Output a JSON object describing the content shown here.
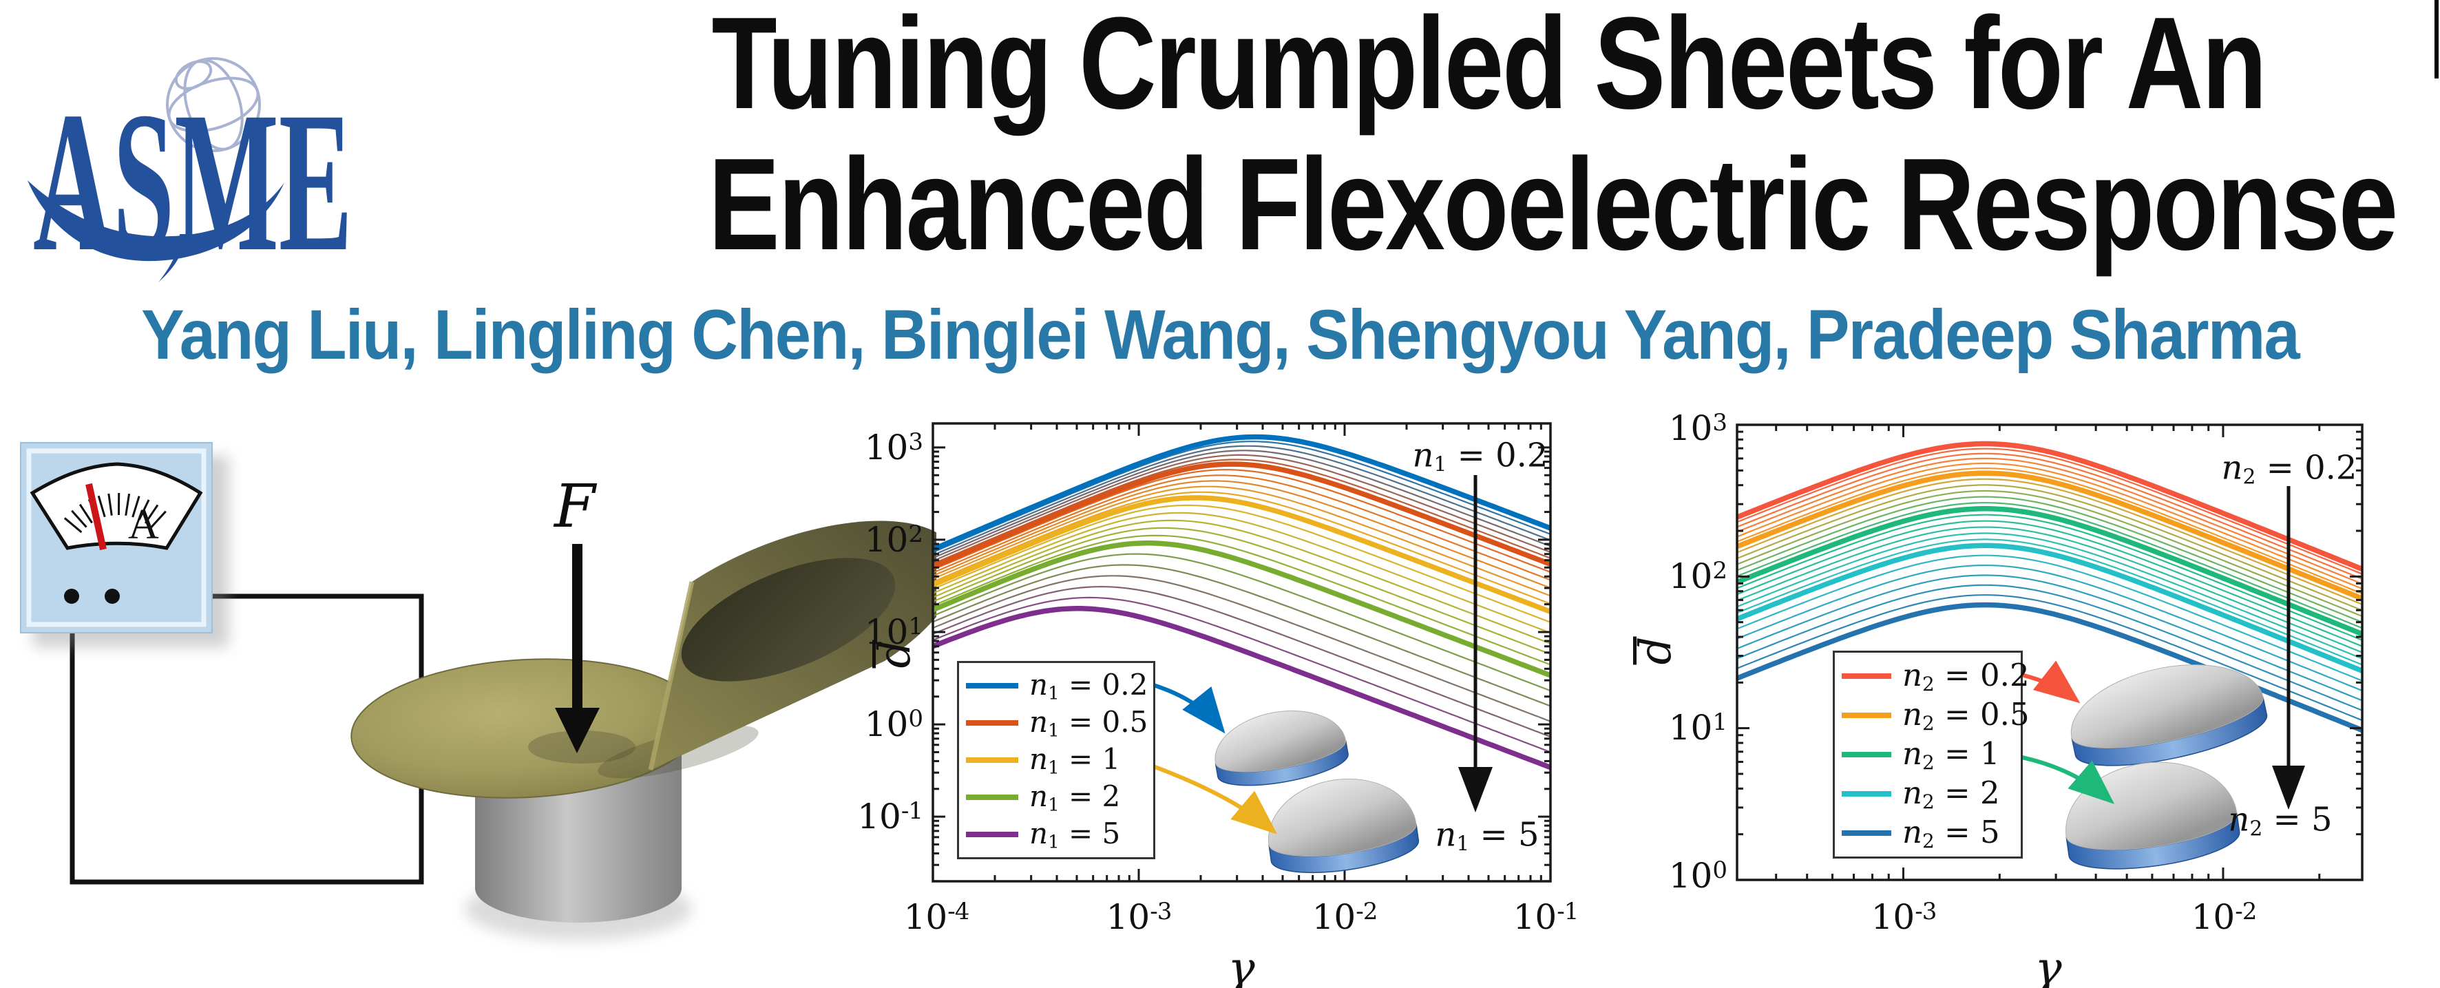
{
  "page": {
    "background": "#ffffff",
    "right_edge_mark_color": "#000000"
  },
  "header": {
    "logo_text": "ASME",
    "logo_color": "#24519B",
    "globe_color": "#A8B3D2",
    "title_line1": "Tuning Crumpled Sheets for An",
    "title_line2": "Enhanced Flexoelectric Response",
    "title_color": "#0d0d0d",
    "authors": "Yang Liu, Lingling Chen, Binglei Wang, Shengyou Yang, Pradeep Sharma",
    "authors_color": "#2878A8"
  },
  "apparatus": {
    "ammeter_label": "A",
    "force_label": "F",
    "panel_color": "#BCD7EC",
    "needle_color": "#CC1518",
    "wire_color": "#111111",
    "sheet_color": "#A09A5F",
    "cylinder_color": "#A9A9A9"
  },
  "chart_data": [
    {
      "type": "line",
      "xscale": "log",
      "yscale": "log",
      "xlabel": "γ",
      "ylabel": "d̄",
      "ylabel_letter": "d",
      "xlim": [
        0.0001,
        0.1
      ],
      "ylim": [
        0.02,
        1800
      ],
      "xlim_log": [
        -4,
        -1
      ],
      "ylim_log": [
        -1.7,
        3.26
      ],
      "grid": false,
      "legend_position": "bottom-left",
      "x_ticks": [
        {
          "base": "10",
          "exp": "-4"
        },
        {
          "base": "10",
          "exp": "-3"
        },
        {
          "base": "10",
          "exp": "-2"
        },
        {
          "base": "10",
          "exp": "-1"
        }
      ],
      "y_ticks": [
        {
          "base": "10",
          "exp": "3"
        },
        {
          "base": "10",
          "exp": "2"
        },
        {
          "base": "10",
          "exp": "1"
        },
        {
          "base": "10",
          "exp": "0"
        },
        {
          "base": "10",
          "exp": "-1"
        }
      ],
      "shape": {
        "slope_left": 0.95,
        "slope_right": 0.85,
        "smooth": 0.2
      },
      "thin_curves_between": 5,
      "series": [
        {
          "var": "n",
          "sub": "1",
          "rest": "= 0.2",
          "n": 0.2,
          "color": "#0072BD",
          "peak_gamma": 0.0035,
          "peak_d": 1300,
          "points": [
            [
              0.0001,
              70
            ],
            [
              0.0035,
              1300
            ],
            [
              0.1,
              120
            ]
          ]
        },
        {
          "var": "n",
          "sub": "1",
          "rest": "= 0.5",
          "n": 0.5,
          "color": "#D95319",
          "peak_gamma": 0.0027,
          "peak_d": 660,
          "points": [
            [
              0.0001,
              48
            ],
            [
              0.0027,
              660
            ],
            [
              0.1,
              54
            ]
          ]
        },
        {
          "var": "n",
          "sub": "1",
          "rest": "= 1",
          "n": 1,
          "color": "#EDB120",
          "peak_gamma": 0.0018,
          "peak_d": 285,
          "points": [
            [
              0.0001,
              31
            ],
            [
              0.0018,
              285
            ],
            [
              0.1,
              16
            ]
          ]
        },
        {
          "var": "n",
          "sub": "1",
          "rest": "= 2",
          "n": 2,
          "color": "#77AC30",
          "peak_gamma": 0.00105,
          "peak_d": 92,
          "points": [
            [
              0.0001,
              17
            ],
            [
              0.00105,
              92
            ],
            [
              0.1,
              3.4
            ]
          ]
        },
        {
          "var": "n",
          "sub": "1",
          "rest": "= 5",
          "n": 5,
          "color": "#7E2F8E",
          "peak_gamma": 0.00048,
          "peak_d": 18,
          "points": [
            [
              0.0001,
              7
            ],
            [
              0.00048,
              18
            ],
            [
              0.1,
              0.34
            ]
          ]
        }
      ],
      "annotations": {
        "top": {
          "var": "n",
          "sub": "1",
          "rest": "= 0.2"
        },
        "bottom": {
          "var": "n",
          "sub": "1",
          "rest": "= 5"
        }
      }
    },
    {
      "type": "line",
      "xscale": "log",
      "yscale": "log",
      "xlabel": "γ",
      "ylabel": "d̄",
      "ylabel_letter": "d",
      "xlim": [
        0.0003,
        0.027
      ],
      "ylim": [
        1,
        1000
      ],
      "xlim_log": [
        -3.52,
        -1.565
      ],
      "ylim_log": [
        0,
        3
      ],
      "grid": false,
      "legend_position": "bottom-left",
      "x_ticks": [
        {
          "base": "10",
          "exp": "-3"
        },
        {
          "base": "10",
          "exp": "-2"
        }
      ],
      "y_ticks": [
        {
          "base": "10",
          "exp": "3"
        },
        {
          "base": "10",
          "exp": "2"
        },
        {
          "base": "10",
          "exp": "1"
        },
        {
          "base": "10",
          "exp": "0"
        }
      ],
      "shape": {
        "slope_left": 0.85,
        "slope_right": 0.85,
        "smooth": 0.15
      },
      "thin_curves_between": 5,
      "series": [
        {
          "var": "n",
          "sub": "2",
          "rest": "= 0.2",
          "n": 0.2,
          "color": "#F4553C",
          "peak_gamma": 0.0018,
          "peak_d": 750,
          "points": [
            [
              0.0003,
              240
            ],
            [
              0.0018,
              750
            ],
            [
              0.027,
              107
            ]
          ]
        },
        {
          "var": "n",
          "sub": "2",
          "rest": "= 0.5",
          "n": 0.5,
          "color": "#F59E1D",
          "peak_gamma": 0.0018,
          "peak_d": 480,
          "points": [
            [
              0.0003,
              153
            ],
            [
              0.0018,
              480
            ],
            [
              0.027,
              68
            ]
          ]
        },
        {
          "var": "n",
          "sub": "2",
          "rest": "= 1",
          "n": 1,
          "color": "#1DB87A",
          "peak_gamma": 0.0018,
          "peak_d": 280,
          "points": [
            [
              0.0003,
              89
            ],
            [
              0.0018,
              280
            ],
            [
              0.027,
              40
            ]
          ]
        },
        {
          "var": "n",
          "sub": "2",
          "rest": "= 2",
          "n": 2,
          "color": "#25BFC7",
          "peak_gamma": 0.0018,
          "peak_d": 160,
          "points": [
            [
              0.0003,
              51
            ],
            [
              0.0018,
              160
            ],
            [
              0.027,
              23
            ]
          ]
        },
        {
          "var": "n",
          "sub": "2",
          "rest": "= 5",
          "n": 5,
          "color": "#2472AE",
          "peak_gamma": 0.0018,
          "peak_d": 65,
          "points": [
            [
              0.0003,
              21
            ],
            [
              0.0018,
              65
            ],
            [
              0.027,
              9.3
            ]
          ]
        }
      ],
      "annotations": {
        "top": {
          "var": "n",
          "sub": "2",
          "rest": "= 0.2"
        },
        "bottom": {
          "var": "n",
          "sub": "2",
          "rest": "= 5"
        }
      }
    }
  ]
}
